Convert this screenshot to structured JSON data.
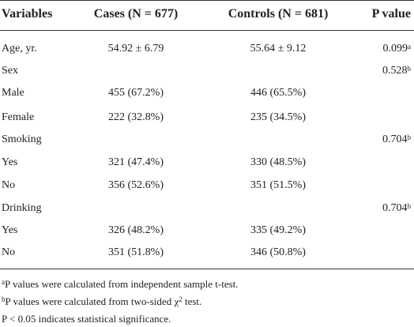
{
  "table": {
    "header": [
      "Variables",
      "Cases (N = 677)",
      "Controls (N = 681)",
      "P value"
    ],
    "rows": [
      {
        "label": "Age, yr.",
        "cases": "54.92 ± 6.79",
        "controls": "55.64 ± 9.12",
        "p": {
          "value": "0.099",
          "note": "a"
        }
      },
      {
        "label": "Sex",
        "p": {
          "value": "0.528",
          "note": "b"
        }
      },
      {
        "label": "Male",
        "cases": "455 (67.2%)",
        "controls": "446 (65.5%)"
      },
      {
        "label": "Female",
        "cases": "222 (32.8%)",
        "controls": "235 (34.5%)"
      },
      {
        "label": "Smoking",
        "p": {
          "value": "0.704",
          "note": "b"
        }
      },
      {
        "label": "Yes",
        "cases": "321 (47.4%)",
        "controls": "330 (48.5%)"
      },
      {
        "label": "No",
        "cases": "356 (52.6%)",
        "controls": "351 (51.5%)"
      },
      {
        "label": "Drinking",
        "p": {
          "value": "0.704",
          "note": "b"
        }
      },
      {
        "label": "Yes",
        "cases": "326 (48.2%)",
        "controls": "335 (49.2%)"
      },
      {
        "label": "No",
        "cases": "351 (51.8%)",
        "controls": "346 (50.8%)"
      }
    ],
    "footnotes": [
      {
        "mark": "a",
        "text": "P values were calculated from independent sample t-test."
      },
      {
        "mark": "b",
        "text": "P values were calculated from two-sided χ",
        "sup": "2",
        "tail": " test."
      },
      {
        "text": "P < 0.05 indicates statistical significance."
      }
    ]
  }
}
